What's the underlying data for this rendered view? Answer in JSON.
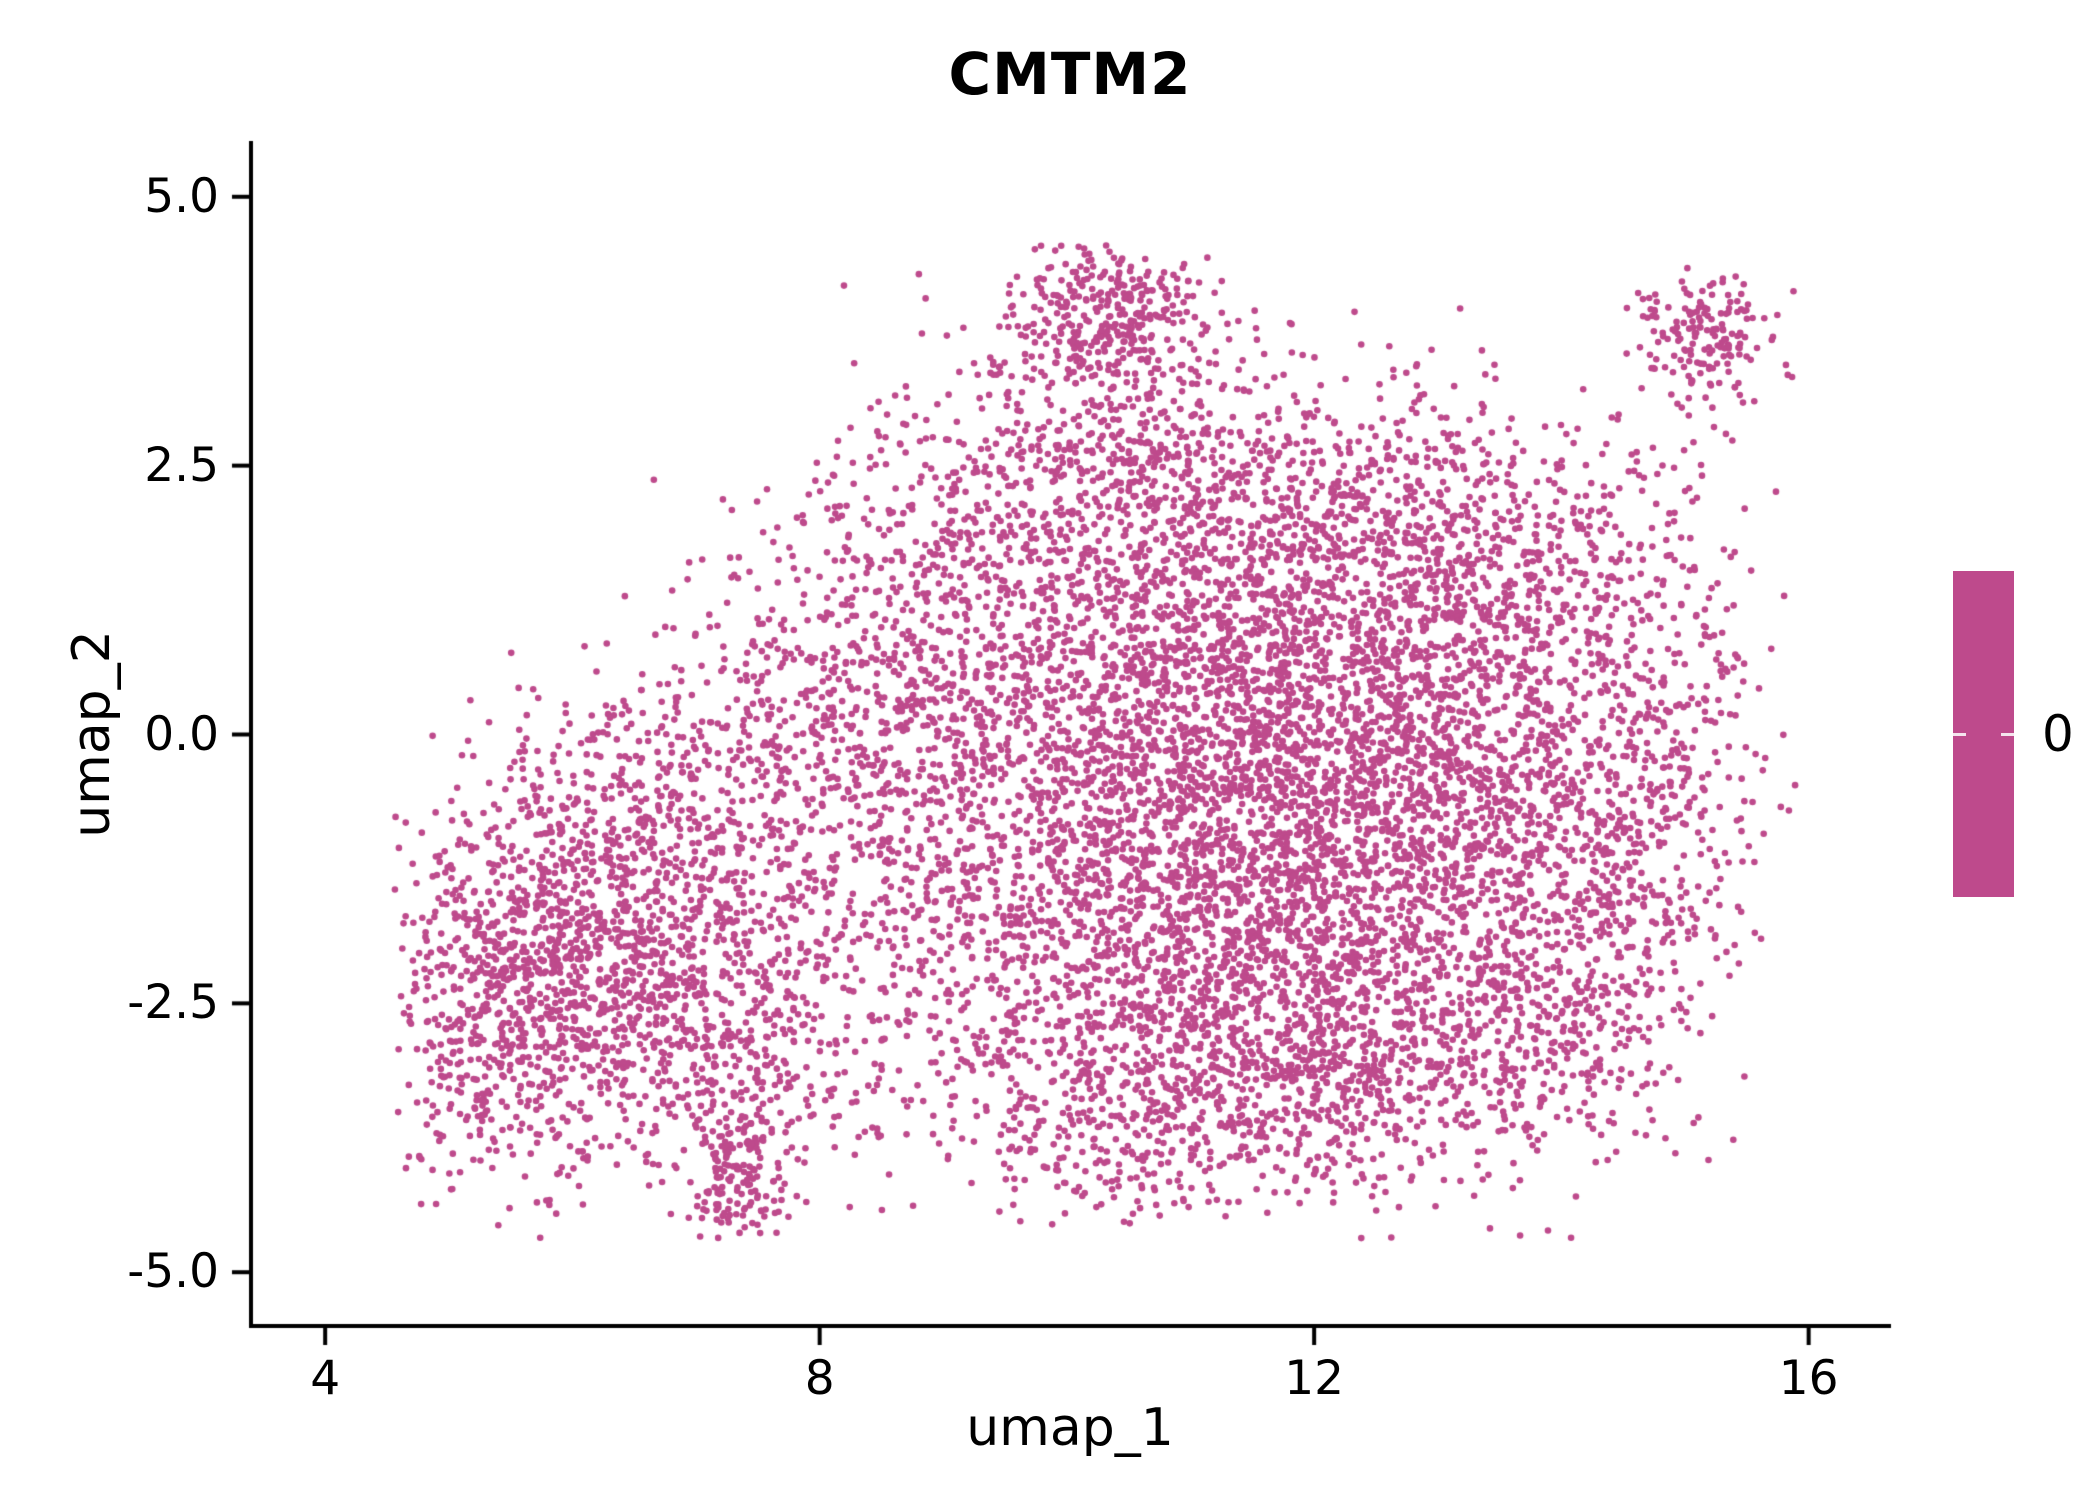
{
  "chart_data": {
    "type": "scatter",
    "title": "CMTM2",
    "xlabel": "umap_1",
    "ylabel": "umap_2",
    "xlim": [
      3.4,
      16.65
    ],
    "ylim": [
      -5.5,
      5.5
    ],
    "xticks": [
      4,
      8,
      12,
      16
    ],
    "xtick_labels": [
      "4",
      "8",
      "12",
      "16"
    ],
    "yticks": [
      5.0,
      2.5,
      0.0,
      -2.5,
      -5.0
    ],
    "ytick_labels": [
      "5.0",
      "2.5",
      "0.0",
      "-2.5",
      "-5.0"
    ],
    "grid": false,
    "legend_position": "right",
    "background": "#FFFFFF",
    "axis_color": "#000000",
    "point_color": "#BE4A8C",
    "point_radius_px": 3.3,
    "seed": 42,
    "colorbar": {
      "label": "0",
      "color": "#BE4A8C",
      "tick_color": "#FFFFFF"
    },
    "point_bounds": {
      "x": [
        4.55,
        15.9
      ],
      "y": [
        -4.72,
        4.58
      ]
    },
    "clusters": [
      {
        "cx": 5.5,
        "cy": -2.5,
        "sx": 0.55,
        "sy": 0.85,
        "n": 650
      },
      {
        "cx": 6.3,
        "cy": -1.8,
        "sx": 0.7,
        "sy": 0.9,
        "n": 650
      },
      {
        "cx": 7.2,
        "cy": -2.7,
        "sx": 0.6,
        "sy": 0.75,
        "n": 500
      },
      {
        "cx": 6.9,
        "cy": -0.7,
        "sx": 0.8,
        "sy": 0.6,
        "n": 320
      },
      {
        "cx": 7.9,
        "cy": 0.3,
        "sx": 0.9,
        "sy": 0.75,
        "n": 260
      },
      {
        "cx": 7.35,
        "cy": -4.15,
        "sx": 0.22,
        "sy": 0.33,
        "n": 130,
        "clip": [
          6.9,
          7.9,
          -4.7,
          -3.5
        ]
      },
      {
        "cx": 8.8,
        "cy": -0.9,
        "sx": 0.8,
        "sy": 1.1,
        "n": 420
      },
      {
        "cx": 9.0,
        "cy": 1.4,
        "sx": 0.8,
        "sy": 0.9,
        "n": 330
      },
      {
        "cx": 11.2,
        "cy": -2.2,
        "sx": 1.2,
        "sy": 0.85,
        "n": 1450
      },
      {
        "cx": 11.5,
        "cy": -0.6,
        "sx": 1.3,
        "sy": 0.9,
        "n": 1550
      },
      {
        "cx": 11.0,
        "cy": 0.9,
        "sx": 1.2,
        "sy": 0.9,
        "n": 1150
      },
      {
        "cx": 13.2,
        "cy": -0.5,
        "sx": 0.9,
        "sy": 1.1,
        "n": 950
      },
      {
        "cx": 14.4,
        "cy": -1.5,
        "sx": 0.55,
        "sy": 1.0,
        "n": 330
      },
      {
        "cx": 11.8,
        "cy": 2.2,
        "sx": 1.1,
        "sy": 0.7,
        "n": 650
      },
      {
        "cx": 10.2,
        "cy": 2.9,
        "sx": 0.7,
        "sy": 0.6,
        "n": 330
      },
      {
        "cx": 10.35,
        "cy": 4.0,
        "sx": 0.42,
        "sy": 0.38,
        "n": 280,
        "clip": [
          9.5,
          11.4,
          3.3,
          4.55
        ]
      },
      {
        "cx": 13.5,
        "cy": 1.5,
        "sx": 0.8,
        "sy": 0.7,
        "n": 430
      },
      {
        "cx": 10.6,
        "cy": -3.6,
        "sx": 0.9,
        "sy": 0.45,
        "n": 330
      },
      {
        "cx": 12.3,
        "cy": -3.2,
        "sx": 0.9,
        "sy": 0.6,
        "n": 430
      },
      {
        "cx": 13.8,
        "cy": -2.8,
        "sx": 0.5,
        "sy": 0.5,
        "n": 190
      },
      {
        "cx": 14.9,
        "cy": 0.2,
        "sx": 0.35,
        "sy": 0.8,
        "n": 120
      },
      {
        "cx": 15.15,
        "cy": 3.7,
        "sx": 0.33,
        "sy": 0.28,
        "n": 170,
        "clip": [
          14.4,
          15.9,
          3.0,
          4.35
        ]
      },
      {
        "cx": 14.9,
        "cy": 2.8,
        "sx": 0.3,
        "sy": 0.25,
        "n": 8
      },
      {
        "cx": 11.5,
        "cy": -0.3,
        "sx": 2.6,
        "sy": 1.9,
        "n": 420,
        "clip": [
          8.2,
          15.5,
          -4.2,
          3.1
        ]
      }
    ]
  }
}
